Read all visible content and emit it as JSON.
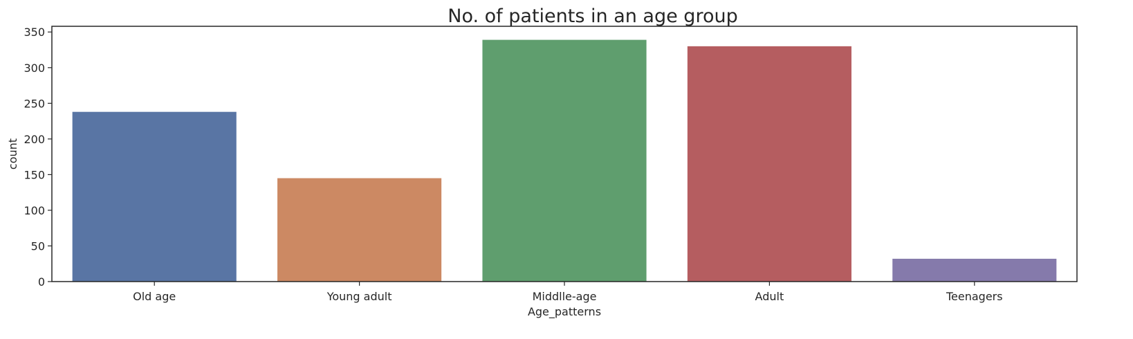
{
  "chart_data": {
    "type": "bar",
    "title": "No. of patients in an age group",
    "xlabel": "Age_patterns",
    "ylabel": "count",
    "categories": [
      "Old age",
      "Young adult",
      "Middlle-age",
      "Adult",
      "Teenagers"
    ],
    "values": [
      238,
      145,
      339,
      330,
      32
    ],
    "colors": [
      "#5975a4",
      "#cc8963",
      "#5f9e6e",
      "#b55d60",
      "#857aab"
    ],
    "ylim": [
      0,
      358
    ],
    "yticks": [
      0,
      50,
      100,
      150,
      200,
      250,
      300,
      350
    ],
    "grid": false,
    "legend": "none"
  }
}
